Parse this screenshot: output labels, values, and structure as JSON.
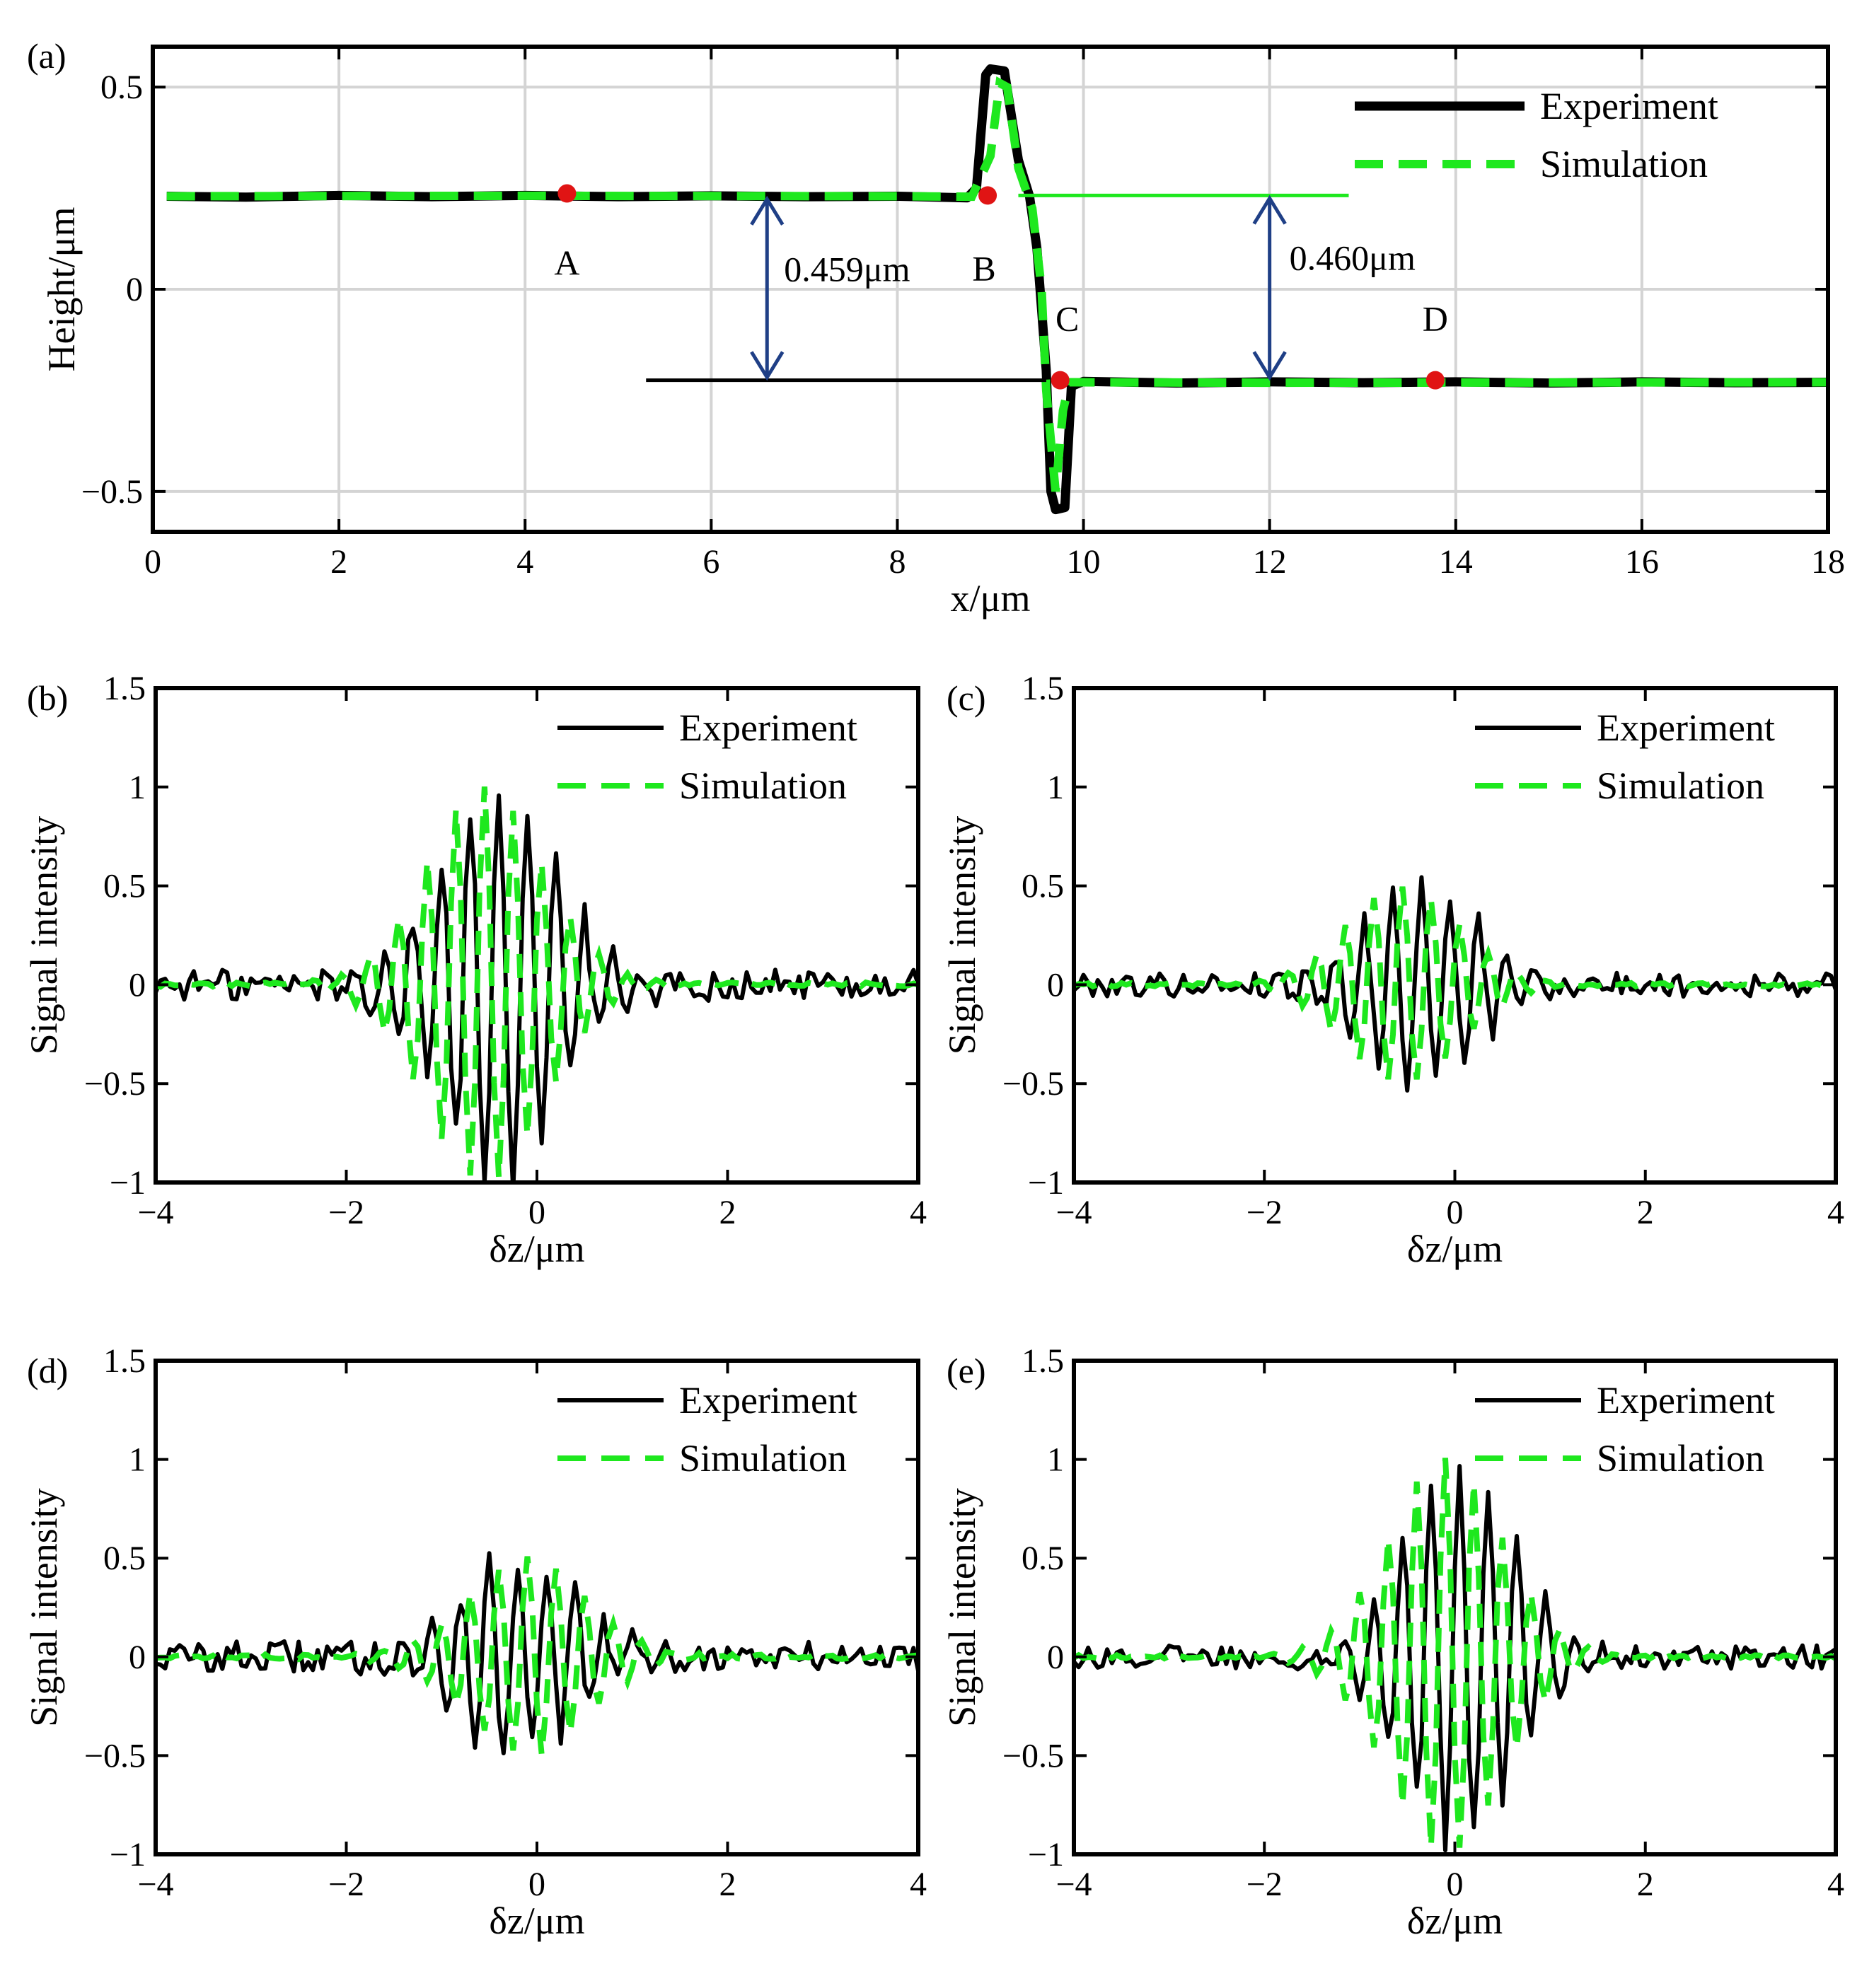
{
  "colors": {
    "experiment": "#000000",
    "simulation": "#1ee81e",
    "marker": "#e01414",
    "arrow": "#1f3f86",
    "grid": "#d4d4d4",
    "ref_line_green": "#1ee81e"
  },
  "chart_data": [
    {
      "id": "a",
      "panel_label": "(a)",
      "type": "line",
      "xlabel": "x/μm",
      "ylabel": "Height/μm",
      "xlim": [
        0,
        18
      ],
      "ylim": [
        -0.6,
        0.6
      ],
      "xticks": [
        0,
        2,
        4,
        6,
        8,
        10,
        12,
        14,
        16,
        18
      ],
      "xtick_labels": [
        "0",
        "2",
        "4",
        "6",
        "8",
        "10",
        "12",
        "14",
        "16",
        "18"
      ],
      "yticks": [
        -0.5,
        0,
        0.5
      ],
      "ytick_labels": [
        "−0.5",
        "0",
        "0.5"
      ],
      "grid": true,
      "legend": {
        "position": "top-right",
        "entries": [
          "Experiment",
          "Simulation"
        ]
      },
      "series": [
        {
          "name": "Experiment",
          "points": [
            [
              0.15,
              0.23
            ],
            [
              1,
              0.228
            ],
            [
              2,
              0.232
            ],
            [
              3,
              0.229
            ],
            [
              4,
              0.232
            ],
            [
              5,
              0.229
            ],
            [
              6,
              0.231
            ],
            [
              7,
              0.229
            ],
            [
              8,
              0.23
            ],
            [
              8.75,
              0.226
            ],
            [
              8.85,
              0.25
            ],
            [
              8.95,
              0.53
            ],
            [
              9.0,
              0.545
            ],
            [
              9.15,
              0.54
            ],
            [
              9.3,
              0.32
            ],
            [
              9.42,
              0.23
            ],
            [
              9.5,
              0.1
            ],
            [
              9.6,
              -0.2
            ],
            [
              9.65,
              -0.5
            ],
            [
              9.7,
              -0.545
            ],
            [
              9.8,
              -0.54
            ],
            [
              9.87,
              -0.24
            ],
            [
              10,
              -0.228
            ],
            [
              11,
              -0.232
            ],
            [
              12,
              -0.229
            ],
            [
              13,
              -0.231
            ],
            [
              14,
              -0.229
            ],
            [
              15,
              -0.232
            ],
            [
              16,
              -0.229
            ],
            [
              17,
              -0.231
            ],
            [
              18,
              -0.23
            ]
          ]
        },
        {
          "name": "Simulation",
          "points": [
            [
              0.15,
              0.23
            ],
            [
              4,
              0.231
            ],
            [
              8,
              0.23
            ],
            [
              8.8,
              0.229
            ],
            [
              9.0,
              0.33
            ],
            [
              9.1,
              0.51
            ],
            [
              9.18,
              0.5
            ],
            [
              9.3,
              0.3
            ],
            [
              9.45,
              0.2
            ],
            [
              9.55,
              0.0
            ],
            [
              9.6,
              -0.25
            ],
            [
              9.7,
              -0.5
            ],
            [
              9.78,
              -0.3
            ],
            [
              9.85,
              -0.23
            ],
            [
              12,
              -0.231
            ],
            [
              18,
              -0.23
            ]
          ]
        }
      ],
      "markers": [
        {
          "label": "A",
          "x": 4.45,
          "y": 0.237
        },
        {
          "label": "B",
          "x": 8.97,
          "y": 0.232
        },
        {
          "label": "C",
          "x": 9.75,
          "y": -0.225
        },
        {
          "label": "D",
          "x": 13.78,
          "y": -0.225
        }
      ],
      "reference_lines": [
        {
          "color_key": "ref_line_green",
          "x0": 9.3,
          "x1": 12.85,
          "y": 0.232
        },
        {
          "color_key": "experiment",
          "x0": 5.3,
          "x1": 9.6,
          "y": -0.225
        }
      ],
      "step_annotations": [
        {
          "text": "0.459μm",
          "x": 6.6,
          "y_top": 0.23,
          "y_bottom": -0.225
        },
        {
          "text": "0.460μm",
          "x": 12.0,
          "y_top": 0.232,
          "y_bottom": -0.225
        }
      ]
    },
    {
      "id": "b",
      "panel_label": "(b)",
      "type": "line",
      "xlabel": "δz/μm",
      "ylabel": "Signal intensity",
      "xlim": [
        -4,
        4
      ],
      "ylim": [
        -1,
        1.5
      ],
      "xticks": [
        -4,
        -2,
        0,
        2,
        4
      ],
      "xtick_labels": [
        "−4",
        "−2",
        "0",
        "2",
        "4"
      ],
      "yticks": [
        -1,
        -0.5,
        0,
        0.5,
        1,
        1.5
      ],
      "ytick_labels": [
        "−1",
        "−0.5",
        "0",
        "0.5",
        "1",
        "1.5"
      ],
      "grid": false,
      "legend": {
        "position": "top-right",
        "entries": [
          "Experiment",
          "Simulation"
        ]
      },
      "signal_model": {
        "experiment_amplitude": 1.0,
        "experiment_center": -0.4,
        "simulation_amplitude": 1.0,
        "simulation_center": -0.55,
        "envelope_sigma": 0.62,
        "period": 0.3,
        "noise": 0.08
      },
      "series": [
        {
          "name": "Experiment"
        },
        {
          "name": "Simulation"
        }
      ]
    },
    {
      "id": "c",
      "panel_label": "(c)",
      "type": "line",
      "xlabel": "δz/μm",
      "ylabel": "Signal intensity",
      "xlim": [
        -4,
        4
      ],
      "ylim": [
        -1,
        1.5
      ],
      "xticks": [
        -4,
        -2,
        0,
        2,
        4
      ],
      "xtick_labels": [
        "−4",
        "−2",
        "0",
        "2",
        "4"
      ],
      "yticks": [
        -1,
        -0.5,
        0,
        0.5,
        1,
        1.5
      ],
      "ytick_labels": [
        "−1",
        "−0.5",
        "0",
        "0.5",
        "1",
        "1.5"
      ],
      "grid": false,
      "legend": {
        "position": "top-right",
        "entries": [
          "Experiment",
          "Simulation"
        ]
      },
      "signal_model": {
        "experiment_amplitude": 0.5,
        "experiment_center": -0.35,
        "simulation_amplitude": 0.5,
        "simulation_center": -0.55,
        "envelope_sigma": 0.6,
        "period": 0.3,
        "noise": 0.06
      },
      "series": [
        {
          "name": "Experiment"
        },
        {
          "name": "Simulation"
        }
      ]
    },
    {
      "id": "d",
      "panel_label": "(d)",
      "type": "line",
      "xlabel": "δz/μm",
      "ylabel": "Signal intensity",
      "xlim": [
        -4,
        4
      ],
      "ylim": [
        -1,
        1.5
      ],
      "xticks": [
        -4,
        -2,
        0,
        2,
        4
      ],
      "xtick_labels": [
        "−4",
        "−2",
        "0",
        "2",
        "4"
      ],
      "yticks": [
        -1,
        -0.5,
        0,
        0.5,
        1,
        1.5
      ],
      "ytick_labels": [
        "−1",
        "−0.5",
        "0",
        "0.5",
        "1",
        "1.5"
      ],
      "grid": false,
      "legend": {
        "position": "top-right",
        "entries": [
          "Experiment",
          "Simulation"
        ]
      },
      "signal_model": {
        "experiment_amplitude": 0.5,
        "experiment_center": -0.2,
        "simulation_amplitude": 0.5,
        "simulation_center": -0.1,
        "envelope_sigma": 0.62,
        "period": 0.3,
        "noise": 0.08
      },
      "series": [
        {
          "name": "Experiment"
        },
        {
          "name": "Simulation"
        }
      ]
    },
    {
      "id": "e",
      "panel_label": "(e)",
      "type": "line",
      "xlabel": "δz/μm",
      "ylabel": "Signal intensity",
      "xlim": [
        -4,
        4
      ],
      "ylim": [
        -1,
        1.5
      ],
      "xticks": [
        -4,
        -2,
        0,
        2,
        4
      ],
      "xtick_labels": [
        "−4",
        "−2",
        "0",
        "2",
        "4"
      ],
      "yticks": [
        -1,
        -0.5,
        0,
        0.5,
        1,
        1.5
      ],
      "ytick_labels": [
        "−1",
        "−0.5",
        "0",
        "0.5",
        "1",
        "1.5"
      ],
      "grid": false,
      "legend": {
        "position": "top-right",
        "entries": [
          "Experiment",
          "Simulation"
        ]
      },
      "signal_model": {
        "experiment_amplitude": 0.95,
        "experiment_center": 0.05,
        "simulation_amplitude": 1.0,
        "simulation_center": -0.1,
        "envelope_sigma": 0.6,
        "period": 0.3,
        "noise": 0.06
      },
      "series": [
        {
          "name": "Experiment"
        },
        {
          "name": "Simulation"
        }
      ]
    }
  ]
}
